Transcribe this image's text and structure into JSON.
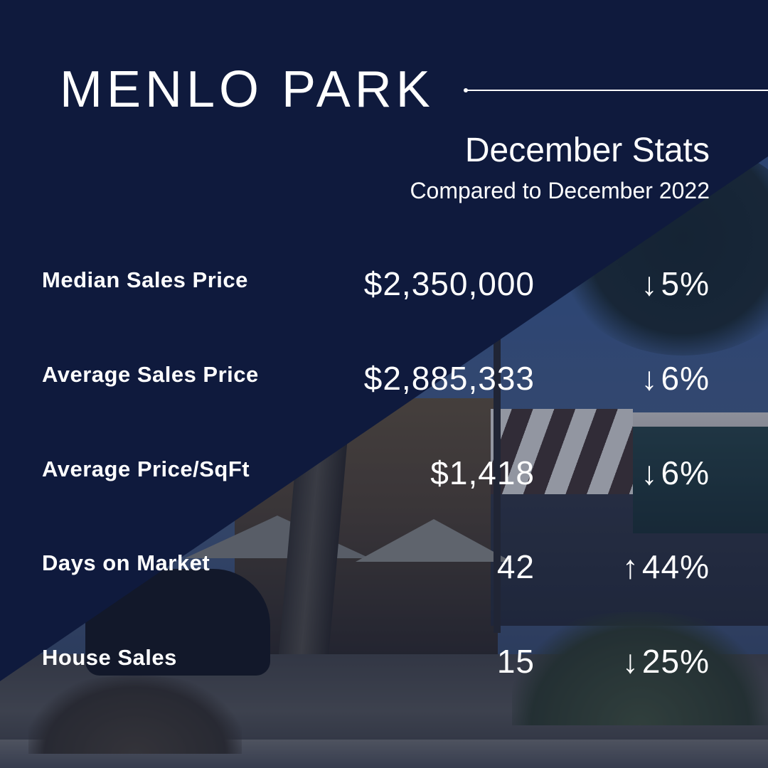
{
  "header": {
    "title": "MENLO PARK",
    "subtitle": "December Stats",
    "comparison": "Compared to December 2022"
  },
  "stats": [
    {
      "label": "Median Sales Price",
      "value": "$2,350,000",
      "direction": "down",
      "arrow": "↓",
      "change": "5%"
    },
    {
      "label": "Average Sales Price",
      "value": "$2,885,333",
      "direction": "down",
      "arrow": "↓",
      "change": "6%"
    },
    {
      "label": "Average Price/SqFt",
      "value": "$1,418",
      "direction": "down",
      "arrow": "↓",
      "change": "6%"
    },
    {
      "label": "Days on Market",
      "value": "42",
      "direction": "up",
      "arrow": "↑",
      "change": "44%"
    },
    {
      "label": "House Sales",
      "value": "15",
      "direction": "down",
      "arrow": "↓",
      "change": "25%"
    }
  ],
  "colors": {
    "navy": "#0f1a3d",
    "text": "#ffffff"
  }
}
